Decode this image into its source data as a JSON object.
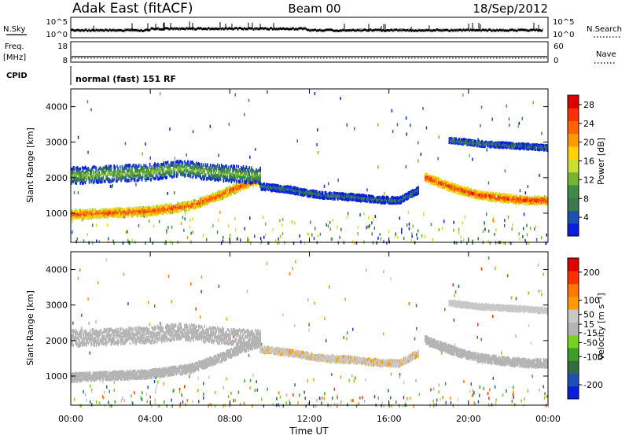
{
  "header": {
    "station": "Adak East (fitACF)",
    "beam": "Beam 00",
    "date": "18/Sep/2012"
  },
  "top_panels": {
    "nsky_label": "N.Sky",
    "nsky_left_ticks": [
      "10^5",
      "10^0"
    ],
    "nsearch_label": "N.Search",
    "nsearch_right_ticks": [
      "10^5",
      "10^0"
    ],
    "freq_label": "Freq.",
    "freq_unit": "[MHz]",
    "freq_ticks": [
      "18",
      "8"
    ],
    "nave_label": "Nave",
    "nave_ticks": [
      "60",
      "0"
    ],
    "cpid_label": "CPID",
    "cpid_text": "normal (fast) 151 RF"
  },
  "colors": {
    "power_scale": [
      "#0a1ee0",
      "#1e50b4",
      "#3c7850",
      "#3e8c46",
      "#78b432",
      "#c8e030",
      "#ffd200",
      "#ff9a00",
      "#ff6400",
      "#ff3000",
      "#e00000"
    ],
    "velocity_scale": [
      "#0a1ee0",
      "#1e50b4",
      "#2e6e3c",
      "#3c9e28",
      "#78d21e",
      "#b4b4b4",
      "#c8c8c8",
      "#ff9a00",
      "#ff7800",
      "#ff3000",
      "#e00000"
    ]
  },
  "chart_data": [
    {
      "type": "heatmap",
      "panel": "power",
      "xlabel": "",
      "ylabel": "Slant Range [km]",
      "ylim": [
        180,
        4500
      ],
      "y_ticks": [
        "4000",
        "3000",
        "2000",
        "1000"
      ],
      "y_tick_values": [
        4000,
        3000,
        2000,
        1000
      ],
      "x_ticks": [
        "00:00",
        "04:00",
        "08:00",
        "12:00",
        "16:00",
        "20:00",
        "00:00"
      ],
      "xlim_hours": [
        0,
        24
      ],
      "colorbar_label": "Power [dB]",
      "colorbar_ticks": [
        "28",
        "24",
        "20",
        "16",
        "12",
        "8",
        "4"
      ],
      "colorbar_tick_values": [
        28,
        24,
        20,
        16,
        12,
        8,
        4
      ],
      "zlim": [
        0,
        30
      ],
      "bands": [
        {
          "name": "near-range",
          "t": [
            0,
            2,
            4,
            6,
            7.5,
            8.5,
            9.5
          ],
          "r": [
            1000,
            1050,
            1100,
            1250,
            1550,
            1800,
            2000
          ],
          "width": 230,
          "level": 26
        },
        {
          "name": "upper",
          "t": [
            0,
            2,
            4,
            5.5,
            7,
            8,
            9.5
          ],
          "r": [
            2100,
            2150,
            2200,
            2300,
            2200,
            2150,
            2100
          ],
          "width": 450,
          "level": 13
        },
        {
          "name": "midday",
          "t": [
            9.5,
            11,
            12.5,
            14,
            15.5,
            16.5,
            17.5
          ],
          "r": [
            1800,
            1700,
            1550,
            1500,
            1420,
            1400,
            1700
          ],
          "width": 170,
          "level": 9
        },
        {
          "name": "evening",
          "t": [
            17.8,
            18.5,
            19.5,
            20.5,
            22,
            23,
            24
          ],
          "r": [
            2050,
            1900,
            1700,
            1550,
            1450,
            1400,
            1400
          ],
          "width": 220,
          "level": 27
        },
        {
          "name": "evening-far",
          "t": [
            19,
            20.5,
            22,
            23.5,
            24
          ],
          "r": [
            3100,
            3000,
            2950,
            2900,
            2880
          ],
          "width": 140,
          "level": 10
        }
      ]
    },
    {
      "type": "heatmap",
      "panel": "velocity",
      "xlabel": "Time UT",
      "ylabel": "Slant Range [km]",
      "ylim": [
        180,
        4500
      ],
      "y_ticks": [
        "4000",
        "3000",
        "2000",
        "1000"
      ],
      "y_tick_values": [
        4000,
        3000,
        2000,
        1000
      ],
      "x_ticks": [
        "00:00",
        "04:00",
        "08:00",
        "12:00",
        "16:00",
        "20:00",
        "00:00"
      ],
      "xlim_hours": [
        0,
        24
      ],
      "colorbar_label": "Velocity [m s⁻¹]",
      "colorbar_ticks": [
        "200",
        "100",
        "50",
        "15",
        "-15",
        "-50",
        "-100",
        "-200"
      ],
      "colorbar_tick_values": [
        200,
        100,
        50,
        15,
        -15,
        -50,
        -100,
        -200
      ],
      "zlim": [
        -250,
        250
      ],
      "bands": [
        {
          "name": "near-range",
          "t": [
            0,
            2,
            4,
            6,
            7.5,
            8.5,
            9.5
          ],
          "r": [
            1000,
            1050,
            1100,
            1250,
            1550,
            1800,
            2000
          ],
          "width": 230,
          "level": 0
        },
        {
          "name": "upper",
          "t": [
            0,
            2,
            4,
            5.5,
            7,
            8,
            9.5
          ],
          "r": [
            2100,
            2150,
            2200,
            2300,
            2200,
            2150,
            2100
          ],
          "width": 450,
          "level": 5
        },
        {
          "name": "midday",
          "t": [
            9.5,
            11,
            12.5,
            14,
            15.5,
            16.5,
            17.5
          ],
          "r": [
            1800,
            1700,
            1550,
            1500,
            1420,
            1400,
            1700
          ],
          "width": 170,
          "level": 60
        },
        {
          "name": "evening",
          "t": [
            17.8,
            18.5,
            19.5,
            20.5,
            22,
            23,
            24
          ],
          "r": [
            2050,
            1900,
            1700,
            1550,
            1450,
            1400,
            1400
          ],
          "width": 220,
          "level": 0
        },
        {
          "name": "evening-far",
          "t": [
            19,
            20.5,
            22,
            23.5,
            24
          ],
          "r": [
            3100,
            3000,
            2950,
            2900,
            2880
          ],
          "width": 140,
          "level": 40
        }
      ]
    }
  ]
}
